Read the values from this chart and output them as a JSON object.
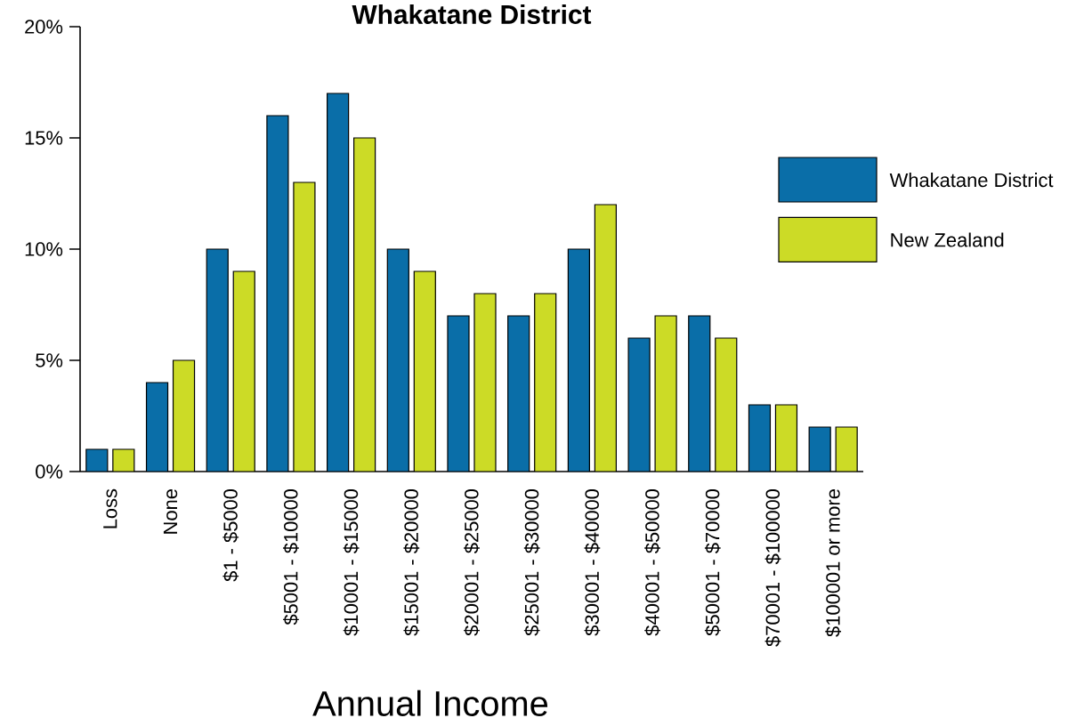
{
  "chart_data": {
    "type": "bar",
    "title": "Whakatane District",
    "xlabel": "Annual Income",
    "categories": [
      "Loss",
      "None",
      "$1 - $5000",
      "$5001 - $10000",
      "$10001 - $15000",
      "$15001 - $20000",
      "$20001 - $25000",
      "$25001 - $30000",
      "$30001 - $40000",
      "$40001 - $50000",
      "$50001 - $70000",
      "$70001 - $100000",
      "$100001 or more"
    ],
    "series": [
      {
        "name": "Whakatane District",
        "color": "#0a6ea8",
        "values": [
          1,
          4,
          10,
          16,
          17,
          10,
          7,
          7,
          10,
          6,
          7,
          3,
          2
        ]
      },
      {
        "name": "New Zealand",
        "color": "#ccdb26",
        "values": [
          1,
          5,
          9,
          13,
          15,
          9,
          8,
          8,
          12,
          7,
          6,
          3,
          2
        ]
      }
    ],
    "ylim": [
      0,
      20
    ],
    "yticks": [
      {
        "value": 0,
        "label": "0%"
      },
      {
        "value": 5,
        "label": "5%"
      },
      {
        "value": 10,
        "label": "10%"
      },
      {
        "value": 15,
        "label": "15%"
      },
      {
        "value": 20,
        "label": "20%"
      }
    ],
    "legend": "right",
    "grid": false
  }
}
